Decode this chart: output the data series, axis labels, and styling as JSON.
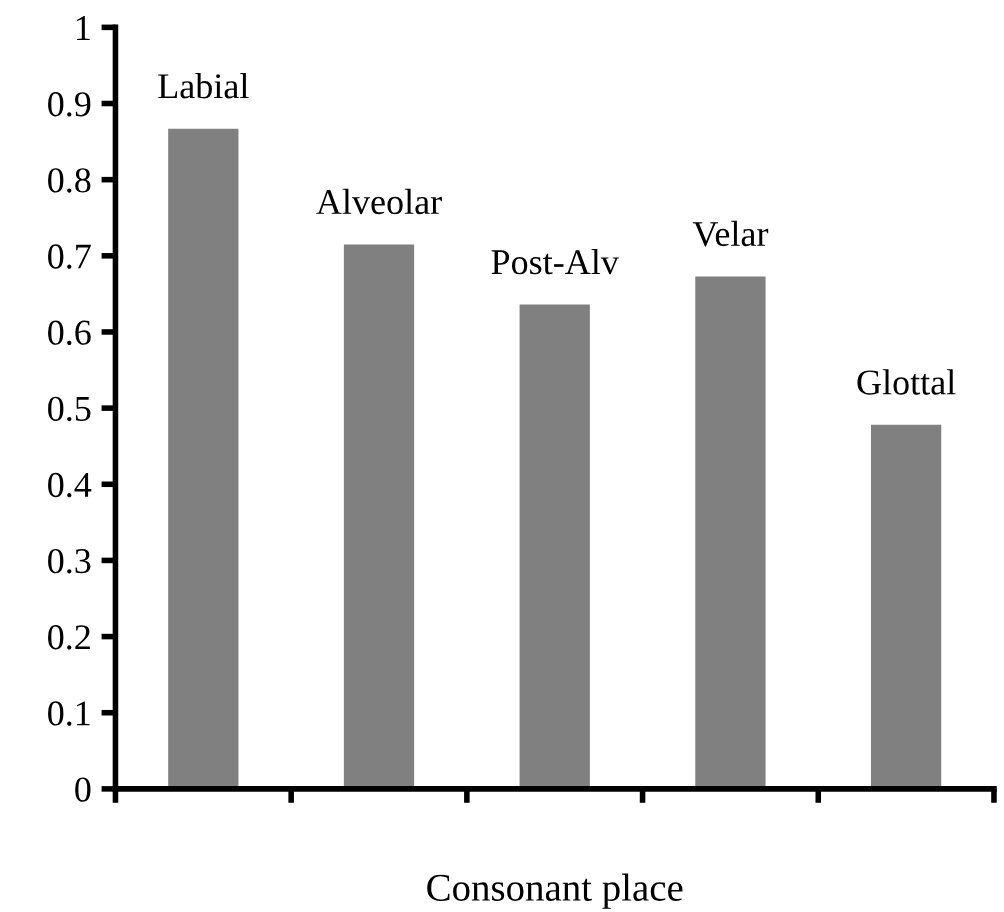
{
  "chart_data": {
    "type": "bar",
    "xlabel": "Consonant place",
    "categories": [
      "Labial",
      "Alveolar",
      "Post-Alv",
      "Velar",
      "Glottal"
    ],
    "values": [
      0.867,
      0.715,
      0.636,
      0.673,
      0.478
    ],
    "color": "#808080",
    "ylim": [
      0,
      1
    ],
    "yticks": [
      0,
      0.1,
      0.2,
      0.3,
      0.4,
      0.5,
      0.6,
      0.7,
      0.8,
      0.9,
      1
    ],
    "grid": false,
    "legend": false
  }
}
